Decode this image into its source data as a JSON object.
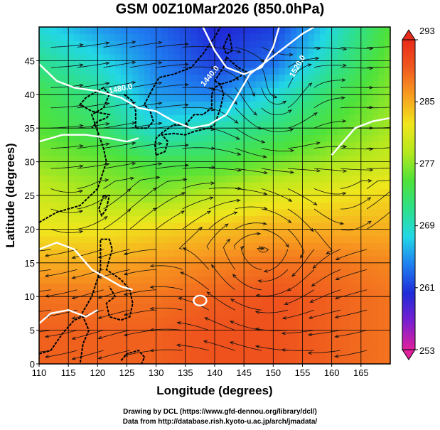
{
  "chart_data": {
    "type": "heatmap",
    "title": "GSM 00Z10Mar2026 (850.0hPa)",
    "xlabel": "Longitude (degrees)",
    "ylabel": "Latitude  (degrees)",
    "xlim": [
      110,
      170
    ],
    "ylim": [
      0,
      50
    ],
    "xticks": [
      110,
      115,
      120,
      125,
      130,
      135,
      140,
      145,
      150,
      155,
      160,
      165
    ],
    "yticks": [
      0,
      5,
      10,
      15,
      20,
      25,
      30,
      35,
      40,
      45
    ],
    "grid": true,
    "colorbar": {
      "ticks": [
        253,
        261,
        269,
        277,
        285,
        293
      ],
      "range": [
        253,
        293
      ],
      "colors": [
        "#e0209c",
        "#7a1fd0",
        "#1f2bd8",
        "#1f7ef0",
        "#22d7e6",
        "#2ee08a",
        "#4ee23a",
        "#b4e81e",
        "#f0e61c",
        "#f8a020",
        "#f05a1e",
        "#e82a1a"
      ]
    },
    "temperature_field": {
      "description_units": "K",
      "lat_rows": [
        0,
        5,
        10,
        15,
        20,
        25,
        30,
        35,
        40,
        45,
        50
      ],
      "lon_cols": [
        110,
        120,
        130,
        140,
        150,
        160,
        170
      ],
      "values": [
        [
          289,
          289,
          289,
          290,
          290,
          289,
          288
        ],
        [
          289,
          289,
          289,
          290,
          290,
          289,
          288
        ],
        [
          288,
          288,
          288,
          289,
          290,
          289,
          288
        ],
        [
          285,
          285,
          286,
          287,
          288,
          288,
          287
        ],
        [
          282,
          282,
          283,
          284,
          285,
          285,
          285
        ],
        [
          280,
          278,
          277,
          279,
          281,
          282,
          283
        ],
        [
          277,
          276,
          274,
          274,
          276,
          278,
          280
        ],
        [
          275,
          273,
          268,
          270,
          272,
          275,
          278
        ],
        [
          274,
          271,
          265,
          264,
          268,
          273,
          277
        ],
        [
          271,
          268,
          264,
          261,
          263,
          270,
          276
        ],
        [
          268,
          265,
          263,
          260,
          261,
          268,
          275
        ]
      ]
    },
    "contour_labels": [
      "1440.0",
      "1480.0",
      "1520.0"
    ]
  },
  "footer": {
    "credit1": "Drawing by DCL (https://www.gfd-dennou.org/library/dcl/)",
    "credit2": "Data from http://database.rish.kyoto-u.ac.jp/arch/jmadata/"
  }
}
